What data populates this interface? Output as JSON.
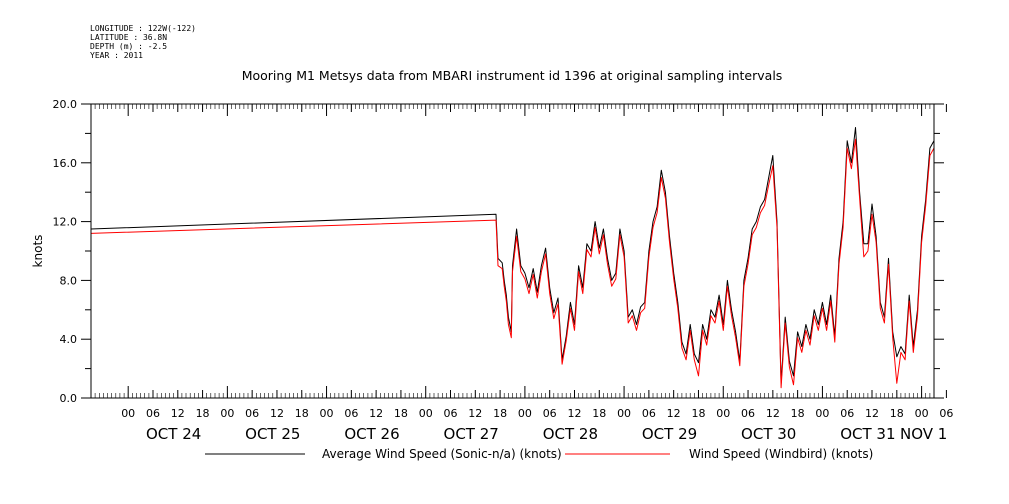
{
  "header": {
    "longitude": "LONGITUDE : 122W(-122)",
    "latitude": "LATITUDE : 36.8N",
    "depth": "DEPTH (m) : -2.5",
    "year": "YEAR : 2011"
  },
  "colors": {
    "series1": "#000000",
    "series2": "#ff0000"
  },
  "chart_data": {
    "type": "line",
    "title": "Mooring M1 Metsys data from MBARI instrument id 1396 at original sampling intervals",
    "xlabel": "",
    "ylabel": "knots",
    "ylim": [
      0,
      20
    ],
    "yticks": [
      "0.0",
      "4.0",
      "8.0",
      "12.0",
      "16.0",
      "20.0"
    ],
    "xlim_hours": [
      -9,
      195
    ],
    "hour_ticks": [
      "00",
      "06",
      "12",
      "18",
      "00",
      "06",
      "12",
      "18",
      "00",
      "06",
      "12",
      "18",
      "00",
      "06",
      "12",
      "18",
      "00",
      "06",
      "12",
      "18",
      "00",
      "06",
      "12",
      "18",
      "00",
      "06",
      "12",
      "18",
      "00",
      "06",
      "12",
      "18",
      "00",
      "06"
    ],
    "day_labels": [
      "OCT 24",
      "OCT 25",
      "OCT 26",
      "OCT 27",
      "OCT 28",
      "OCT 29",
      "OCT 30",
      "OCT 31",
      "NOV 1"
    ],
    "x_units": "hours since OCT 24 00:00",
    "series": [
      {
        "name": "Average Wind Speed (Sonic-n/a) (knots)",
        "color": "#000000",
        "x": [
          -9,
          89,
          89.5,
          90.5,
          91,
          91.5,
          92,
          92.7,
          93,
          94,
          95,
          96,
          97,
          98,
          99,
          100,
          101,
          102,
          103,
          104,
          105,
          106,
          107,
          108,
          109,
          110,
          111,
          112,
          113,
          114,
          115,
          116,
          117,
          118,
          119,
          120,
          121,
          122,
          123,
          124,
          125,
          126,
          127,
          128,
          129,
          130,
          131,
          132,
          133,
          134,
          135,
          136,
          137,
          138,
          139,
          140,
          141,
          142,
          143,
          144,
          145,
          146,
          147,
          148,
          149,
          150,
          151,
          152,
          153,
          154,
          155,
          156,
          157,
          158,
          159,
          160,
          161,
          162,
          163,
          164,
          165,
          166,
          167,
          168,
          169,
          170,
          171,
          172,
          173,
          174,
          175,
          176,
          177,
          178,
          179,
          180,
          181,
          182,
          183,
          184,
          185,
          186,
          187,
          188,
          189,
          190,
          191,
          192,
          193,
          194,
          195
        ],
        "values": [
          11.5,
          12.5,
          9.5,
          9.2,
          8.0,
          7.0,
          5.5,
          4.5,
          9.0,
          11.5,
          9.0,
          8.5,
          7.5,
          8.8,
          7.2,
          9.0,
          10.2,
          7.5,
          5.8,
          6.8,
          2.6,
          4.2,
          6.5,
          5.0,
          9.0,
          7.5,
          10.5,
          10.0,
          12.0,
          10.2,
          11.5,
          9.5,
          8.0,
          8.5,
          11.5,
          10.0,
          5.5,
          6.0,
          5.0,
          6.2,
          6.5,
          10.0,
          12.0,
          13.0,
          15.5,
          14.0,
          11.0,
          8.5,
          6.5,
          3.8,
          3.0,
          5.0,
          3.0,
          2.4,
          5.0,
          4.0,
          6.0,
          5.5,
          7.0,
          5.0,
          8.0,
          6.0,
          4.5,
          2.5,
          8.0,
          9.5,
          11.5,
          12.0,
          13.0,
          13.5,
          15.0,
          16.5,
          12.0,
          1.0,
          5.5,
          2.5,
          1.5,
          4.5,
          3.5,
          5.0,
          4.0,
          6.0,
          5.0,
          6.5,
          5.0,
          7.0,
          4.2,
          9.5,
          12.0,
          17.5,
          16.0,
          18.4,
          14.0,
          10.5,
          10.5,
          13.2,
          11.0,
          6.5,
          5.5,
          9.5,
          4.5,
          2.8,
          3.5,
          3.0,
          7.0,
          3.5,
          6.0,
          11.0,
          13.5,
          17.0,
          17.5
        ]
      },
      {
        "name": "Wind Speed (Windbird) (knots)",
        "color": "#ff0000",
        "x": [
          -9,
          89,
          89.5,
          90.5,
          91,
          91.5,
          92,
          92.7,
          93,
          94,
          95,
          96,
          97,
          98,
          99,
          100,
          101,
          102,
          103,
          104,
          105,
          106,
          107,
          108,
          109,
          110,
          111,
          112,
          113,
          114,
          115,
          116,
          117,
          118,
          119,
          120,
          121,
          122,
          123,
          124,
          125,
          126,
          127,
          128,
          129,
          130,
          131,
          132,
          133,
          134,
          135,
          136,
          137,
          138,
          139,
          140,
          141,
          142,
          143,
          144,
          145,
          146,
          147,
          148,
          149,
          150,
          151,
          152,
          153,
          154,
          155,
          156,
          157,
          158,
          159,
          160,
          161,
          162,
          163,
          164,
          165,
          166,
          167,
          168,
          169,
          170,
          171,
          172,
          173,
          174,
          175,
          176,
          177,
          178,
          179,
          180,
          181,
          182,
          183,
          184,
          185,
          186,
          187,
          188,
          189,
          190,
          191,
          192,
          193,
          194,
          195
        ],
        "values": [
          11.2,
          12.1,
          9.0,
          8.8,
          7.6,
          6.6,
          5.0,
          4.1,
          8.6,
          11.0,
          8.6,
          8.1,
          7.1,
          8.4,
          6.8,
          8.6,
          9.8,
          7.1,
          5.4,
          6.4,
          2.3,
          3.9,
          6.1,
          4.6,
          8.6,
          7.1,
          10.1,
          9.6,
          11.6,
          9.8,
          11.1,
          9.1,
          7.6,
          8.1,
          11.1,
          9.6,
          5.1,
          5.6,
          4.6,
          5.8,
          6.1,
          9.6,
          11.6,
          12.6,
          15.0,
          13.6,
          10.6,
          8.1,
          6.1,
          3.4,
          2.6,
          4.6,
          2.6,
          1.5,
          4.6,
          3.6,
          5.6,
          5.1,
          6.6,
          4.6,
          7.6,
          5.6,
          4.1,
          2.2,
          7.6,
          9.1,
          11.1,
          11.6,
          12.6,
          13.1,
          14.5,
          15.8,
          11.6,
          0.7,
          5.1,
          2.1,
          0.9,
          4.1,
          3.1,
          4.6,
          3.6,
          5.6,
          4.6,
          6.1,
          4.6,
          6.6,
          3.8,
          9.1,
          11.6,
          17.0,
          15.6,
          17.6,
          13.6,
          9.6,
          10.0,
          12.5,
          10.6,
          6.1,
          5.1,
          9.1,
          4.1,
          1.0,
          3.1,
          2.6,
          6.6,
          3.1,
          5.6,
          10.6,
          13.1,
          16.5,
          17.0
        ]
      }
    ],
    "legend": [
      {
        "label": "Average Wind Speed (Sonic-n/a) (knots)",
        "color": "#000000"
      },
      {
        "label": "Wind Speed (Windbird) (knots)",
        "color": "#ff0000"
      }
    ]
  }
}
